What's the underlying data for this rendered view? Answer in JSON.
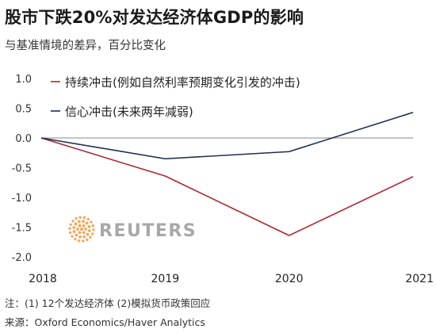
{
  "title": "股市下跌20%对发达经济体GDP的影响",
  "subtitle": "与基准情境的差异，百分比变化",
  "chart_data": {
    "type": "line",
    "x": [
      "2018",
      "2019",
      "2020",
      "2021"
    ],
    "ylim": [
      -2.0,
      1.0
    ],
    "yticks": [
      1.0,
      0.5,
      0.0,
      -0.5,
      -1.0,
      -1.5,
      -2.0
    ],
    "ytick_labels": [
      "1.0",
      "0.5",
      "0.0",
      "-0.5",
      "-1.0",
      "-1.5",
      "-2.0"
    ],
    "series": [
      {
        "name": "持续冲击(例如自然利率预期变化引发的冲击)",
        "color": "#b0262f",
        "values": [
          0.0,
          -0.64,
          -1.64,
          -0.65
        ]
      },
      {
        "name": "信心冲击(未来两年减弱)",
        "color": "#1c2e4f",
        "values": [
          0.0,
          -0.35,
          -0.23,
          0.43
        ]
      }
    ],
    "legend_position": "top-left"
  },
  "watermark": {
    "text": "REUTERS",
    "color": "#f08a24"
  },
  "footnotes": [
    "注：(1) 12个发达经济体  (2)模拟货币政策回应",
    "来源：Oxford Economics/Haver Analytics"
  ]
}
